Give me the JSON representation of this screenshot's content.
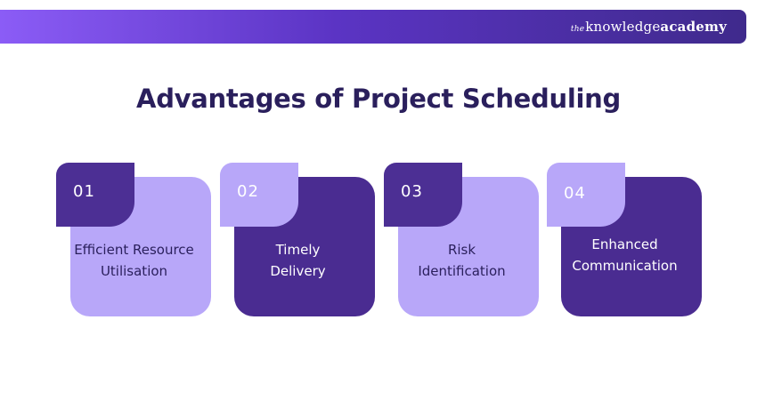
{
  "header": {
    "logo_prefix": "the",
    "logo_main": "knowledge",
    "logo_accent": "academy"
  },
  "title": "Advantages of Project Scheduling",
  "cards": [
    {
      "number": "01",
      "line1": "Efficient Resource",
      "line2": "Utilisation",
      "style": "light"
    },
    {
      "number": "02",
      "line1": "Timely",
      "line2": "Delivery",
      "style": "dark"
    },
    {
      "number": "03",
      "line1": "Risk",
      "line2": "Identification",
      "style": "light"
    },
    {
      "number": "04",
      "line1": "Enhanced",
      "line2": "Communication",
      "style": "dark"
    }
  ],
  "colors": {
    "dark_purple": "#4a2c91",
    "light_purple": "#b8a7f9",
    "title_color": "#2a1f5c"
  }
}
